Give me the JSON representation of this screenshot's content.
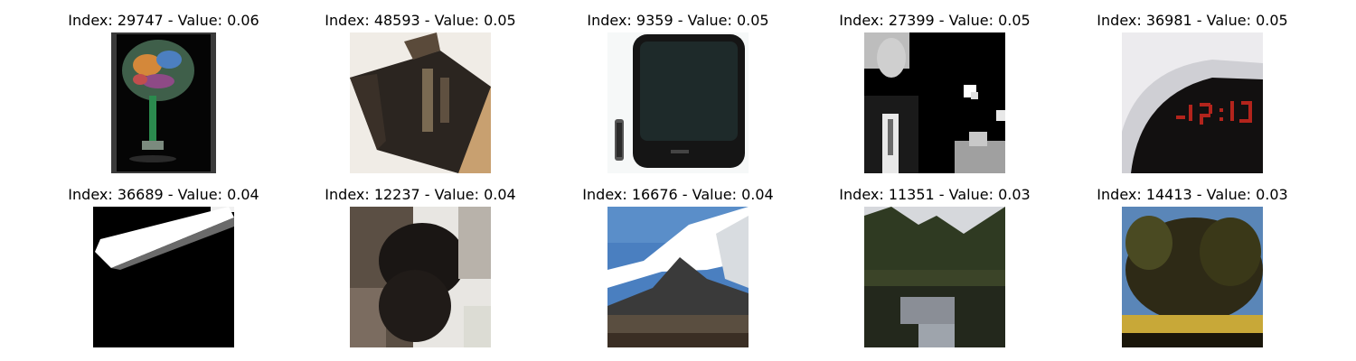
{
  "images": [
    {
      "title": "Index: 29747 - Value: 0.06",
      "depicts": "goblet-sculpture"
    },
    {
      "title": "Index: 48593 - Value: 0.05",
      "depicts": "dark-box-object"
    },
    {
      "title": "Index: 9359 - Value: 0.05",
      "depicts": "crt-television"
    },
    {
      "title": "Index: 27399 - Value: 0.05",
      "depicts": "man-in-suit"
    },
    {
      "title": "Index: 36981 - Value: 0.05",
      "depicts": "alarm-clock"
    },
    {
      "title": "Index: 36689 - Value: 0.04",
      "depicts": "white-streak"
    },
    {
      "title": "Index: 12237 - Value: 0.04",
      "depicts": "black-animal"
    },
    {
      "title": "Index: 16676 - Value: 0.04",
      "depicts": "mountain-landscape"
    },
    {
      "title": "Index: 11351 - Value: 0.03",
      "depicts": "lake-forest"
    },
    {
      "title": "Index: 14413 - Value: 0.03",
      "depicts": "tree-field"
    }
  ]
}
